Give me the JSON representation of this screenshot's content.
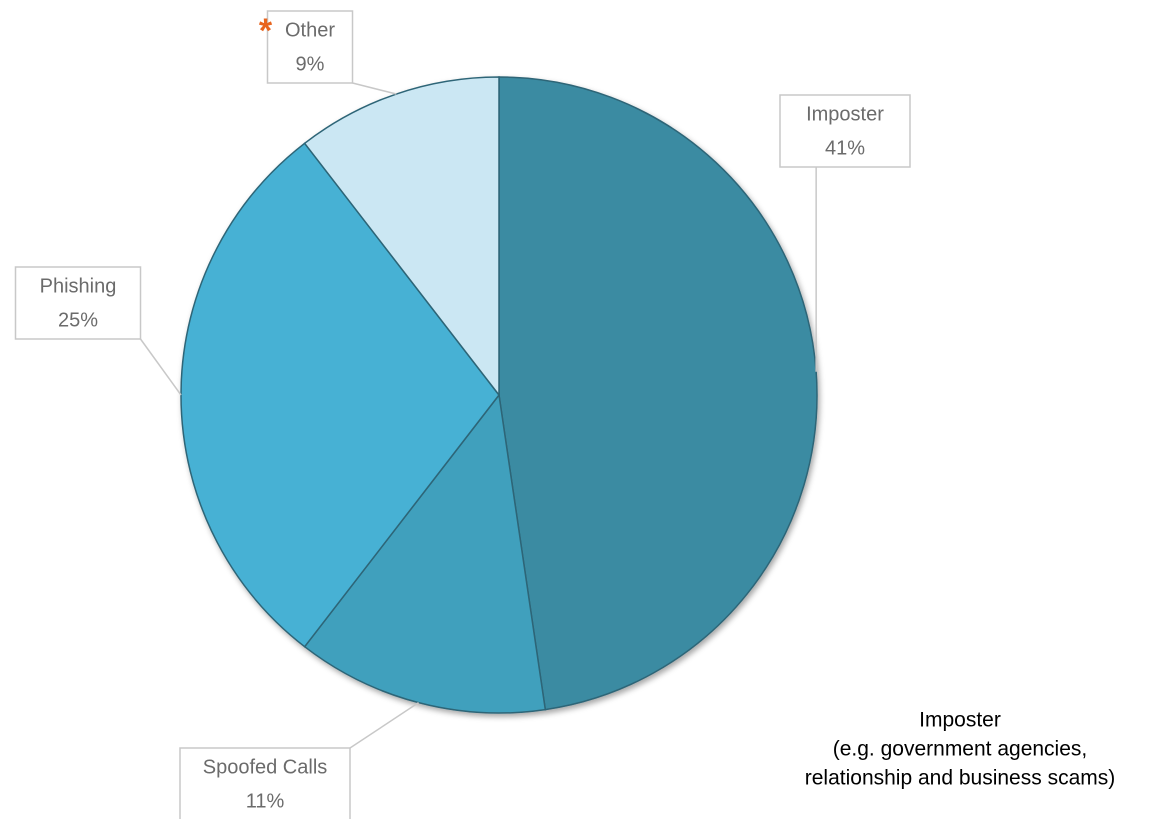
{
  "chart_data": {
    "type": "pie",
    "categories": [
      "Imposter",
      "Spoofed Calls",
      "Phishing",
      "Other"
    ],
    "values": [
      41,
      11,
      25,
      9
    ],
    "value_labels": [
      "41%",
      "11%",
      "25%",
      "9%"
    ],
    "colors": [
      "#3a8ba2",
      "#3fa0bd",
      "#46b1d4",
      "#cbe7f3"
    ],
    "marker": "*",
    "annotation": [
      "Imposter",
      "(e.g. government agencies,",
      "relationship and business scams)"
    ]
  }
}
